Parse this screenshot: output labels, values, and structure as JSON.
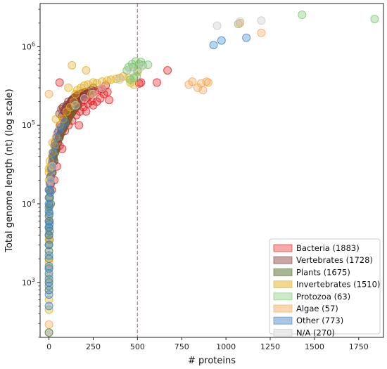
{
  "chart_data": {
    "type": "scatter",
    "xlabel": "# proteins",
    "ylabel": "Total genome length (nt) (log scale)",
    "xlim": [
      -50,
      1890
    ],
    "ylim_log10": [
      2.3,
      6.55
    ],
    "y_scale": "log",
    "x_ticks": [
      0,
      250,
      500,
      750,
      1000,
      1250,
      1500,
      1750
    ],
    "x_tick_labels": [
      "0",
      "250",
      "500",
      "750",
      "1000",
      "1250",
      "1500",
      "1750"
    ],
    "y_ticks": [
      1000,
      10000,
      100000,
      1000000
    ],
    "y_tick_labels": [
      {
        "base": "10",
        "exp": "3"
      },
      {
        "base": "10",
        "exp": "4"
      },
      {
        "base": "10",
        "exp": "5"
      },
      {
        "base": "10",
        "exp": "6"
      }
    ],
    "vline": {
      "x": 500,
      "color": "#e8756b",
      "style": "dashed"
    },
    "legend_position": "lower right",
    "grid": false,
    "series": [
      {
        "name": "Bacteria (1883)",
        "color": "#e41a1c",
        "legend_fill": "#f4a9aa",
        "points": [
          [
            8,
            22000
          ],
          [
            12,
            28000
          ],
          [
            18,
            32000
          ],
          [
            25,
            38000
          ],
          [
            32,
            45000
          ],
          [
            40,
            52000
          ],
          [
            48,
            60000
          ],
          [
            55,
            68000
          ],
          [
            62,
            75000
          ],
          [
            70,
            82000
          ],
          [
            78,
            90000
          ],
          [
            85,
            98000
          ],
          [
            95,
            110000
          ],
          [
            105,
            120000
          ],
          [
            115,
            130000
          ],
          [
            125,
            140000
          ],
          [
            135,
            150000
          ],
          [
            150,
            165000
          ],
          [
            165,
            180000
          ],
          [
            180,
            195000
          ],
          [
            200,
            210000
          ],
          [
            215,
            225000
          ],
          [
            230,
            240000
          ],
          [
            245,
            255000
          ],
          [
            260,
            270000
          ],
          [
            280,
            280000
          ],
          [
            300,
            290000
          ],
          [
            20,
            40000
          ],
          [
            35,
            60000
          ],
          [
            50,
            80000
          ],
          [
            65,
            100000
          ],
          [
            80,
            120000
          ],
          [
            100,
            140000
          ],
          [
            120,
            160000
          ],
          [
            140,
            180000
          ],
          [
            160,
            200000
          ],
          [
            180,
            230000
          ],
          [
            200,
            250000
          ],
          [
            60,
            55000
          ],
          [
            90,
            85000
          ],
          [
            110,
            100000
          ],
          [
            130,
            115000
          ],
          [
            155,
            135000
          ],
          [
            175,
            150000
          ],
          [
            195,
            170000
          ],
          [
            220,
            190000
          ],
          [
            240,
            205000
          ],
          [
            60,
            350000
          ],
          [
            320,
            320000
          ],
          [
            340,
            210000
          ],
          [
            520,
            350000
          ],
          [
            510,
            340000
          ],
          [
            610,
            350000
          ],
          [
            670,
            500000
          ],
          [
            20,
            25000
          ],
          [
            28,
            35000
          ],
          [
            42,
            50000
          ],
          [
            58,
            70000
          ],
          [
            72,
            88000
          ],
          [
            88,
            105000
          ],
          [
            102,
            125000
          ],
          [
            118,
            145000
          ],
          [
            132,
            165000
          ],
          [
            148,
            185000
          ],
          [
            45,
            30000
          ],
          [
            75,
            50000
          ],
          [
            10,
            18000
          ],
          [
            15,
            15000
          ],
          [
            30,
            20000
          ],
          [
            170,
            100000
          ],
          [
            210,
            150000
          ],
          [
            250,
            180000
          ],
          [
            270,
            200000
          ],
          [
            290,
            220000
          ],
          [
            310,
            250000
          ],
          [
            330,
            265000
          ]
        ]
      },
      {
        "name": "Vertebrates (1728)",
        "color": "#8b3a3a",
        "legend_fill": "#c7a6a6",
        "points": [
          [
            60,
            140000
          ],
          [
            70,
            160000
          ],
          [
            80,
            170000
          ],
          [
            90,
            150000
          ],
          [
            100,
            180000
          ],
          [
            110,
            200000
          ],
          [
            120,
            190000
          ],
          [
            130,
            210000
          ],
          [
            140,
            220000
          ],
          [
            150,
            230000
          ],
          [
            160,
            240000
          ],
          [
            170,
            220000
          ],
          [
            180,
            250000
          ],
          [
            190,
            230000
          ],
          [
            200,
            260000
          ],
          [
            210,
            250000
          ],
          [
            75,
            130000
          ],
          [
            85,
            155000
          ],
          [
            95,
            165000
          ],
          [
            105,
            175000
          ],
          [
            115,
            185000
          ],
          [
            125,
            200000
          ],
          [
            135,
            215000
          ],
          [
            145,
            225000
          ],
          [
            155,
            235000
          ],
          [
            165,
            245000
          ],
          [
            185,
            255000
          ],
          [
            205,
            265000
          ],
          [
            225,
            270000
          ],
          [
            240,
            280000
          ],
          [
            250,
            300000
          ],
          [
            140,
            200000
          ],
          [
            150,
            210000
          ],
          [
            160,
            215000
          ],
          [
            130,
            190000
          ]
        ]
      },
      {
        "name": "Plants (1675)",
        "color": "#556b2f",
        "legend_fill": "#a7b595",
        "points": [
          [
            0,
            9000
          ],
          [
            0,
            7000
          ],
          [
            0,
            5000
          ],
          [
            0,
            4000
          ],
          [
            0,
            3000
          ],
          [
            0,
            2500
          ],
          [
            0,
            2000
          ],
          [
            0,
            1500
          ],
          [
            0,
            1000
          ],
          [
            0,
            800
          ],
          [
            0,
            230
          ],
          [
            5,
            12000
          ],
          [
            5,
            15000
          ],
          [
            10,
            10000
          ],
          [
            10,
            20000
          ],
          [
            15,
            25000
          ],
          [
            20,
            30000
          ],
          [
            25,
            40000
          ],
          [
            30,
            35000
          ],
          [
            35,
            45000
          ],
          [
            40,
            50000
          ],
          [
            50,
            60000
          ],
          [
            60,
            70000
          ],
          [
            70,
            80000
          ],
          [
            80,
            90000
          ],
          [
            90,
            100000
          ],
          [
            100,
            110000
          ],
          [
            110,
            120000
          ],
          [
            120,
            135000
          ],
          [
            130,
            145000
          ],
          [
            140,
            160000
          ],
          [
            150,
            170000
          ],
          [
            160,
            180000
          ],
          [
            3,
            6000
          ],
          [
            3,
            4500
          ],
          [
            3,
            3500
          ]
        ]
      },
      {
        "name": "Invertebrates (1510)",
        "color": "#e0b020",
        "legend_fill": "#f0d98e",
        "points": [
          [
            0,
            25000
          ],
          [
            0,
            20000
          ],
          [
            0,
            15000
          ],
          [
            0,
            12000
          ],
          [
            0,
            9000
          ],
          [
            0,
            6000
          ],
          [
            0,
            3500
          ],
          [
            0,
            1800
          ],
          [
            0,
            1200
          ],
          [
            0,
            600
          ],
          [
            0,
            450
          ],
          [
            10,
            30000
          ],
          [
            20,
            45000
          ],
          [
            30,
            55000
          ],
          [
            40,
            70000
          ],
          [
            60,
            100000
          ],
          [
            80,
            120000
          ],
          [
            100,
            150000
          ],
          [
            120,
            170000
          ],
          [
            140,
            200000
          ],
          [
            150,
            250000
          ],
          [
            160,
            280000
          ],
          [
            180,
            300000
          ],
          [
            200,
            320000
          ],
          [
            220,
            330000
          ],
          [
            250,
            350000
          ],
          [
            270,
            340000
          ],
          [
            300,
            360000
          ],
          [
            330,
            370000
          ],
          [
            350,
            380000
          ],
          [
            380,
            390000
          ],
          [
            400,
            400000
          ],
          [
            420,
            420000
          ],
          [
            450,
            400000
          ],
          [
            460,
            350000
          ],
          [
            480,
            330000
          ],
          [
            500,
            480000
          ],
          [
            130,
            580000
          ],
          [
            210,
            500000
          ],
          [
            240,
            250000
          ],
          [
            110,
            300000
          ],
          [
            40,
            120000
          ],
          [
            20,
            60000
          ],
          [
            5,
            35000
          ],
          [
            0,
            28000
          ]
        ]
      },
      {
        "name": "Protozoa (63)",
        "color": "#77c66e",
        "legend_fill": "#cde9c9",
        "points": [
          [
            450,
            550000
          ],
          [
            470,
            600000
          ],
          [
            490,
            650000
          ],
          [
            510,
            600000
          ],
          [
            530,
            580000
          ],
          [
            480,
            400000
          ],
          [
            500,
            500000
          ],
          [
            460,
            380000
          ],
          [
            520,
            640000
          ],
          [
            560,
            590000
          ],
          [
            1070,
            1950000
          ],
          [
            1430,
            2550000
          ],
          [
            1840,
            2250000
          ],
          [
            440,
            500000
          ],
          [
            475,
            550000
          ],
          [
            495,
            420000
          ]
        ]
      },
      {
        "name": "Algae (57)",
        "color": "#f5a656",
        "legend_fill": "#f8d7b2",
        "points": [
          [
            0,
            250000
          ],
          [
            0,
            290
          ],
          [
            790,
            330000
          ],
          [
            810,
            360000
          ],
          [
            840,
            300000
          ],
          [
            860,
            340000
          ],
          [
            870,
            280000
          ],
          [
            890,
            360000
          ],
          [
            1200,
            1500000
          ],
          [
            1080,
            2000000
          ],
          [
            900,
            350000
          ]
        ]
      },
      {
        "name": "Other (773)",
        "color": "#3a83c8",
        "legend_fill": "#a8c7e6",
        "points": [
          [
            0,
            15000
          ],
          [
            0,
            12000
          ],
          [
            0,
            10000
          ],
          [
            0,
            8000
          ],
          [
            0,
            6000
          ],
          [
            0,
            5000
          ],
          [
            0,
            4000
          ],
          [
            0,
            3000
          ],
          [
            0,
            2200
          ],
          [
            0,
            1600
          ],
          [
            0,
            1300
          ],
          [
            0,
            1100
          ],
          [
            0,
            900
          ],
          [
            0,
            700
          ],
          [
            0,
            500
          ],
          [
            5,
            18000
          ],
          [
            8,
            14000
          ],
          [
            10,
            22000
          ],
          [
            15,
            28000
          ],
          [
            20,
            35000
          ],
          [
            25,
            45000
          ],
          [
            35,
            55000
          ],
          [
            45,
            70000
          ],
          [
            55,
            85000
          ],
          [
            70,
            95000
          ],
          [
            90,
            110000
          ],
          [
            930,
            1050000
          ],
          [
            975,
            1200000
          ],
          [
            1115,
            1300000
          ],
          [
            3,
            9500
          ],
          [
            3,
            7500
          ],
          [
            3,
            5500
          ]
        ]
      },
      {
        "name": "N/A (270)",
        "color": "#c8c8c8",
        "legend_fill": "#eaeaea",
        "points": [
          [
            950,
            1850000
          ],
          [
            1200,
            2150000
          ],
          [
            1080,
            2100000
          ],
          [
            520,
            550000
          ],
          [
            460,
            500000
          ],
          [
            300,
            300000
          ],
          [
            250,
            250000
          ],
          [
            20,
            30000
          ],
          [
            10,
            20000
          ],
          [
            400,
            380000
          ],
          [
            200,
            220000
          ],
          [
            150,
            180000
          ]
        ]
      }
    ]
  }
}
